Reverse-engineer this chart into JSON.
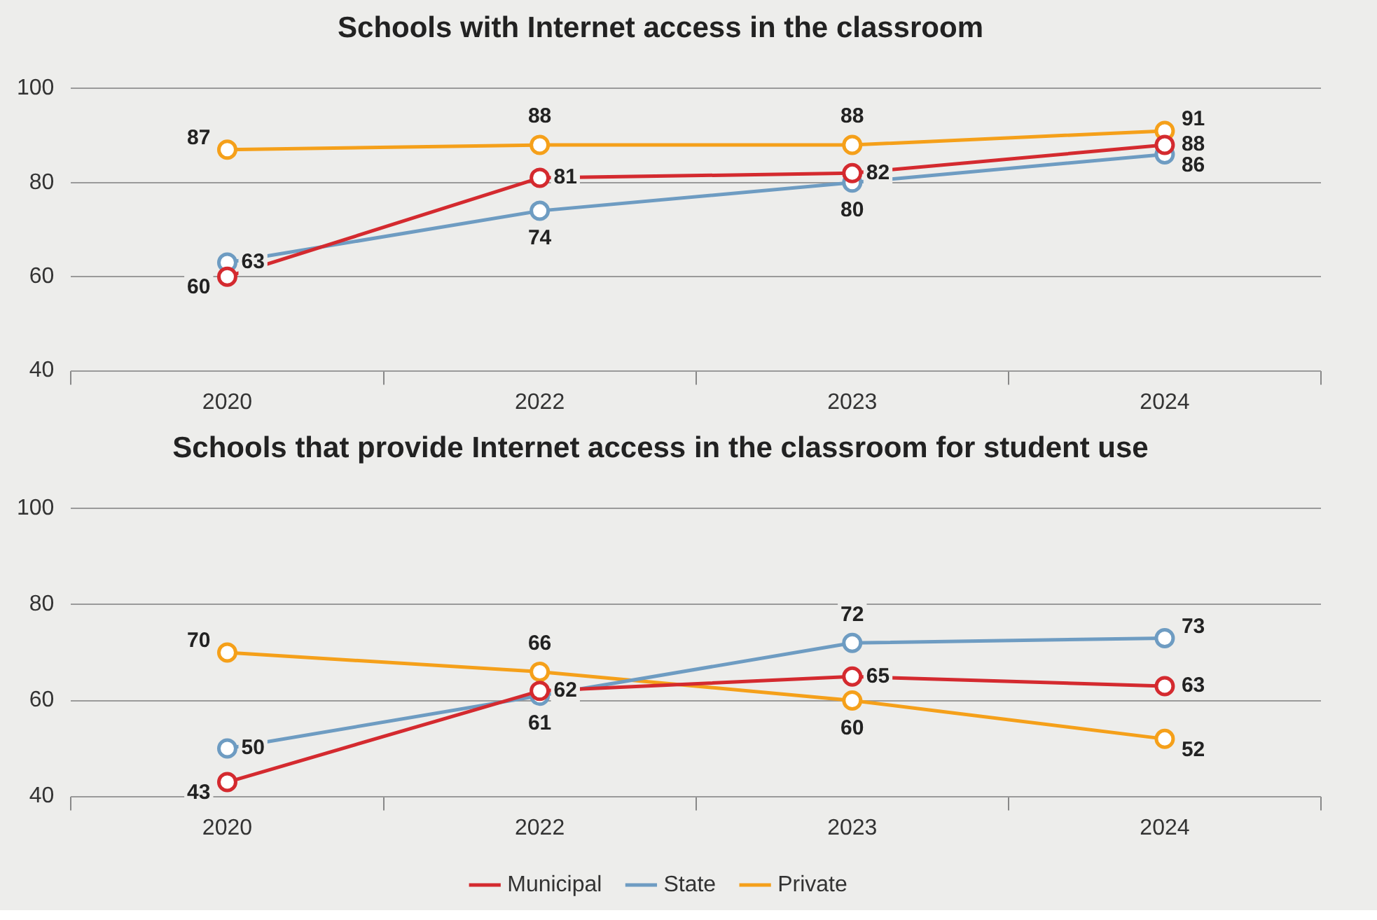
{
  "chart_data": [
    {
      "type": "line",
      "title": "Schools with Internet access in the classroom",
      "categories": [
        "2020",
        "2022",
        "2023",
        "2024"
      ],
      "series": [
        {
          "color": "#d42a2f",
          "values": [
            60,
            81,
            82,
            88
          ]
        },
        {
          "color": "#6e9cc2",
          "values": [
            63,
            74,
            80,
            86
          ]
        },
        {
          "color": "#f5a01a",
          "values": [
            87,
            88,
            88,
            91
          ]
        }
      ],
      "ylim": [
        40,
        100
      ],
      "yticks": [
        40,
        60,
        80,
        100
      ],
      "grid": "y",
      "marker": "circle",
      "line_style": "solid",
      "data_labels": true,
      "legend": false
    },
    {
      "type": "line",
      "title": "Schools that provide Internet access in the classroom for student use",
      "categories": [
        "2020",
        "2022",
        "2023",
        "2024"
      ],
      "series": [
        {
          "name": "Municipal",
          "color": "#d42a2f",
          "values": [
            43,
            62,
            65,
            63
          ]
        },
        {
          "name": "State",
          "color": "#6e9cc2",
          "values": [
            50,
            61,
            72,
            73
          ]
        },
        {
          "name": "Private",
          "color": "#f5a01a",
          "values": [
            70,
            66,
            60,
            52
          ]
        }
      ],
      "ylim": [
        40,
        100
      ],
      "yticks": [
        40,
        60,
        80,
        100
      ],
      "grid": "y",
      "marker": "circle",
      "line_style": "solid",
      "data_labels": true,
      "legend": "bottom"
    }
  ]
}
